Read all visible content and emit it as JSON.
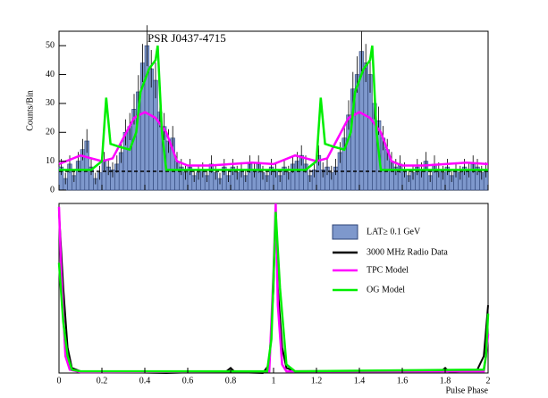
{
  "chart_data": [
    {
      "type": "histogram",
      "title": "PSR J0437-4715",
      "ylabel": "Counts/Bin",
      "xlim": [
        0,
        2
      ],
      "ylim": [
        0,
        55
      ],
      "yticks": [
        0,
        10,
        20,
        30,
        40,
        50
      ],
      "xticks": [
        0,
        0.2,
        0.4,
        0.6,
        0.8,
        1,
        1.2,
        1.4,
        1.6,
        1.8,
        2
      ],
      "bins": [
        0,
        0.02,
        0.04,
        0.06,
        0.08,
        0.1,
        0.12,
        0.14,
        0.16,
        0.18,
        0.2,
        0.22,
        0.24,
        0.26,
        0.28,
        0.3,
        0.32,
        0.34,
        0.36,
        0.38,
        0.4,
        0.42,
        0.44,
        0.46,
        0.48,
        0.5,
        0.52,
        0.54,
        0.56,
        0.58,
        0.6,
        0.62,
        0.64,
        0.66,
        0.68,
        0.7,
        0.72,
        0.74,
        0.76,
        0.78,
        0.8,
        0.82,
        0.84,
        0.86,
        0.88,
        0.9,
        0.92,
        0.94,
        0.96,
        0.98,
        1,
        1.02,
        1.04,
        1.06,
        1.08,
        1.1,
        1.12,
        1.14,
        1.16,
        1.18,
        1.2,
        1.22,
        1.24,
        1.26,
        1.28,
        1.3,
        1.32,
        1.34,
        1.36,
        1.38,
        1.4,
        1.42,
        1.44,
        1.46,
        1.48,
        1.5,
        1.52,
        1.54,
        1.56,
        1.58,
        1.6,
        1.62,
        1.64,
        1.66,
        1.68,
        1.7,
        1.72,
        1.74,
        1.76,
        1.78,
        1.8,
        1.82,
        1.84,
        1.86,
        1.88,
        1.9,
        1.92,
        1.94,
        1.96,
        1.98,
        2
      ],
      "series": [
        {
          "name": "LAT≥ 0.1 GeV",
          "color": "#7e98cc",
          "values": [
            8,
            4,
            9,
            5,
            10,
            14,
            17,
            8,
            4,
            6,
            10,
            8,
            7,
            9,
            13,
            20,
            22,
            28,
            34,
            44,
            50,
            42,
            38,
            27,
            22,
            17,
            18,
            10,
            8,
            6,
            8,
            5,
            6,
            7,
            5,
            9,
            6,
            4,
            8,
            5,
            8,
            6,
            7,
            5,
            9,
            7,
            9,
            6,
            5,
            8,
            7,
            5,
            8,
            6,
            9,
            10,
            12,
            9,
            5,
            7,
            12,
            7,
            8,
            6,
            8,
            13,
            18,
            26,
            35,
            40,
            48,
            44,
            40,
            30,
            24,
            18,
            14,
            10,
            8,
            9,
            7,
            5,
            6,
            8,
            7,
            10,
            5,
            9,
            7,
            6,
            8,
            5,
            7,
            6,
            8,
            7,
            9,
            8,
            6,
            7
          ],
          "errors": [
            2.8,
            2,
            3,
            2.2,
            3.2,
            3.7,
            4.1,
            2.8,
            2,
            2.4,
            3.2,
            2.8,
            2.6,
            3,
            3.6,
            4.5,
            4.7,
            5.3,
            5.8,
            6.6,
            7.1,
            6.5,
            6.2,
            5.2,
            4.7,
            4.1,
            4.2,
            3.2,
            2.8,
            2.4,
            2.8,
            2.2,
            2.4,
            2.6,
            2.2,
            3,
            2.4,
            2,
            2.8,
            2.2,
            2.8,
            2.4,
            2.6,
            2.2,
            3,
            2.6,
            3,
            2.4,
            2.2,
            2.8,
            2.6,
            2.2,
            2.8,
            2.4,
            3,
            3.2,
            3.5,
            3,
            2.2,
            2.6,
            3.5,
            2.6,
            2.8,
            2.4,
            2.8,
            3.6,
            4.2,
            5.1,
            5.9,
            6.3,
            6.9,
            6.6,
            6.3,
            5.5,
            4.9,
            4.2,
            3.7,
            3.2,
            2.8,
            3,
            2.6,
            2.2,
            2.4,
            2.8,
            2.6,
            3.2,
            2.2,
            3,
            2.6,
            2.4,
            2.8,
            2.2,
            2.6,
            2.4,
            2.8,
            2.6,
            3,
            2.8,
            2.4,
            2.6
          ]
        }
      ],
      "background": 6.5,
      "lines": [
        {
          "color": "#ff00ff",
          "x": [
            0,
            0.1,
            0.2,
            0.25,
            0.3,
            0.35,
            0.4,
            0.45,
            0.5,
            0.55,
            0.6,
            0.7,
            0.8,
            0.9,
            1,
            1.1,
            1.2,
            1.25,
            1.3,
            1.35,
            1.4,
            1.45,
            1.5,
            1.55,
            1.6,
            1.7,
            1.8,
            1.9,
            2
          ],
          "values": [
            9,
            12,
            10,
            11,
            18,
            25,
            27,
            25,
            20,
            10,
            8.5,
            8.5,
            9,
            9.5,
            9,
            12,
            10,
            11,
            18,
            25,
            27,
            25,
            20,
            10,
            8.5,
            8.5,
            9,
            9.5,
            9
          ]
        },
        {
          "color": "#00ee00",
          "x": [
            0,
            0.15,
            0.2,
            0.22,
            0.24,
            0.28,
            0.33,
            0.36,
            0.38,
            0.42,
            0.45,
            0.46,
            0.48,
            0.5,
            1,
            1.15,
            1.2,
            1.22,
            1.24,
            1.28,
            1.33,
            1.36,
            1.38,
            1.42,
            1.45,
            1.46,
            1.48,
            1.5,
            2
          ],
          "values": [
            7,
            7,
            10,
            32,
            16,
            15,
            14,
            20,
            34,
            42,
            45,
            50,
            20,
            7,
            7,
            7,
            10,
            32,
            16,
            15,
            14,
            20,
            34,
            42,
            45,
            50,
            20,
            7,
            7
          ]
        }
      ]
    },
    {
      "type": "line",
      "xlabel": "Pulse Phase",
      "xlim": [
        0,
        2
      ],
      "ylim": [
        0,
        1
      ],
      "xticks": [
        0,
        0.2,
        0.4,
        0.6,
        0.8,
        1,
        1.2,
        1.4,
        1.6,
        1.8,
        2
      ],
      "series": [
        {
          "name": "3000 MHz Radio Data",
          "color": "#000000",
          "x": [
            0,
            0.02,
            0.04,
            0.06,
            0.1,
            0.5,
            0.78,
            0.8,
            0.82,
            0.95,
            0.98,
            1,
            1.01,
            1.02,
            1.04,
            1.06,
            1.1,
            1.78,
            1.8,
            1.82,
            1.95,
            1.98,
            2
          ],
          "values": [
            0.95,
            0.5,
            0.15,
            0.03,
            0.01,
            0,
            0.01,
            0.03,
            0.005,
            0,
            0.05,
            0.5,
            0.97,
            0.5,
            0.15,
            0.03,
            0.01,
            0.01,
            0.03,
            0.005,
            0.02,
            0.1,
            0.4
          ]
        },
        {
          "name": "TPC Model",
          "color": "#ff00ff",
          "x": [
            0,
            0.01,
            0.03,
            0.05,
            0.1,
            0.98,
            1,
            1.01,
            1.02,
            1.04,
            1.06,
            1.98,
            1.99,
            2
          ],
          "values": [
            0.98,
            0.6,
            0.1,
            0.02,
            0.005,
            0.01,
            0.6,
            1,
            0.4,
            0.05,
            0.01,
            0.01,
            0.1,
            0.23
          ]
        },
        {
          "name": "OG Model",
          "color": "#00ee00",
          "x": [
            0,
            0.02,
            0.04,
            0.06,
            0.1,
            0.97,
            0.99,
            1.01,
            1.03,
            1.06,
            1.1,
            1.98,
            1.99,
            2
          ],
          "values": [
            0.65,
            0.3,
            0.1,
            0.02,
            0.01,
            0.01,
            0.2,
            0.95,
            0.5,
            0.05,
            0.01,
            0.02,
            0.1,
            0.35
          ]
        }
      ]
    }
  ]
}
